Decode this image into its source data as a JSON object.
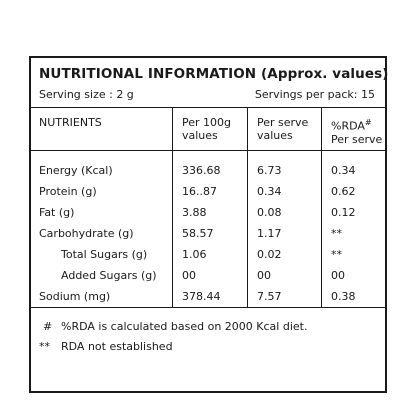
{
  "title": "NUTRITIONAL INFORMATION (Approx. values)",
  "serving_size": "Serving size : 2 g",
  "servings_per_pack": "Servings per pack: 15",
  "headers": {
    "nutrients": "NUTRIENTS",
    "per100g_line1": "Per 100g",
    "per100g_line2": "values",
    "perserve_line1": "Per serve",
    "perserve_line2": "values",
    "rda_line1": "%RDA",
    "rda_mark": "#",
    "rda_line2": "Per serve"
  },
  "rows": [
    {
      "name": "Energy (Kcal)",
      "per100g": "336.68",
      "perserve": "6.73",
      "rda": "0.34"
    },
    {
      "name": "Protein (g)",
      "per100g": "16..87",
      "perserve": "0.34",
      "rda": "0.62"
    },
    {
      "name": "Fat (g)",
      "per100g": "3.88",
      "perserve": "0.08",
      "rda": "0.12"
    },
    {
      "name": "Carbohydrate (g)",
      "per100g": "58.57",
      "perserve": "1.17",
      "rda": "**"
    },
    {
      "name": "Total Sugars (g)",
      "per100g": "1.06",
      "perserve": "0.02",
      "rda": "**"
    },
    {
      "name": "Added Sugars (g)",
      "per100g": "00",
      "perserve": "00",
      "rda": "00"
    },
    {
      "name": "Sodium (mg)",
      "per100g": "378.44",
      "perserve": "7.57",
      "rda": "0.38"
    }
  ],
  "footnotes": [
    {
      "mark": "#",
      "text": "%RDA is calculated based on 2000 Kcal diet."
    },
    {
      "mark": "**",
      "text": "RDA not established"
    }
  ]
}
